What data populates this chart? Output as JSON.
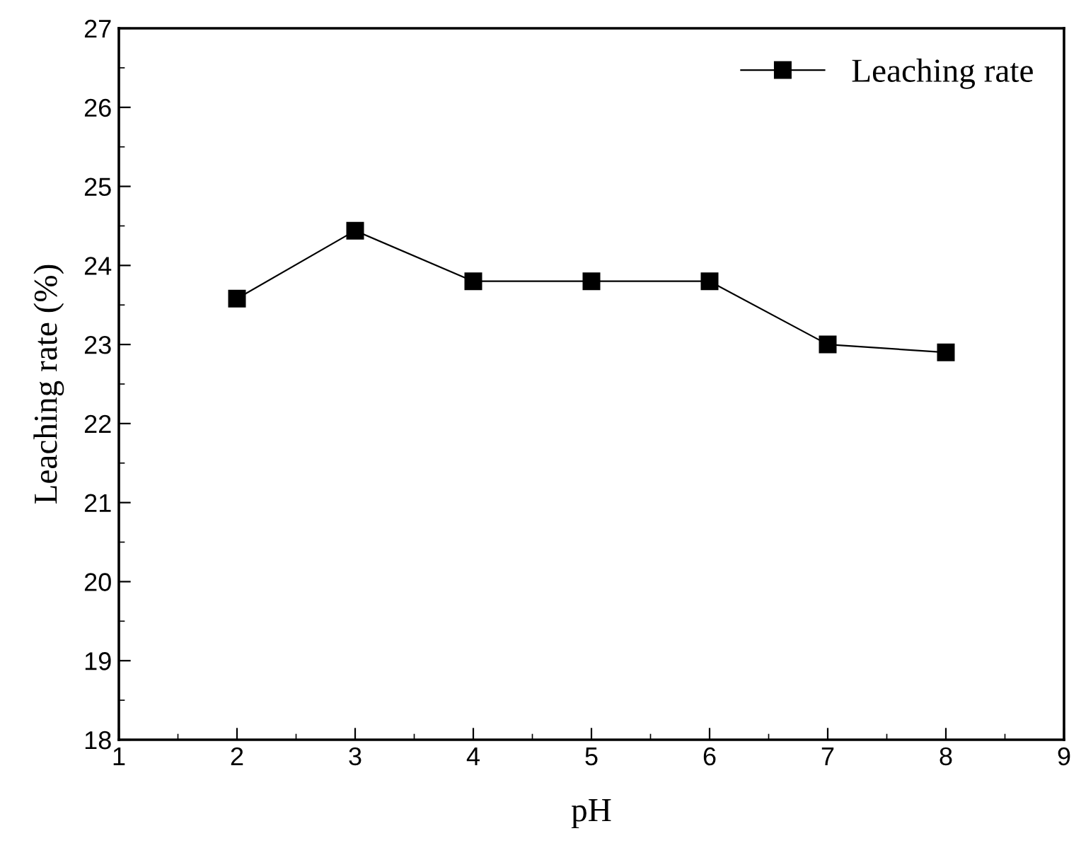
{
  "chart_data": {
    "type": "line",
    "xlabel": "pH",
    "ylabel": "Leaching rate (%)",
    "x": [
      2,
      3,
      4,
      5,
      6,
      7,
      8
    ],
    "series": [
      {
        "name": "Leaching rate",
        "color": "#000000",
        "values": [
          23.58,
          24.44,
          23.8,
          23.8,
          23.8,
          23.0,
          22.9
        ]
      }
    ],
    "xlim": [
      1,
      9
    ],
    "xticks": [
      1,
      2,
      3,
      4,
      5,
      6,
      7,
      8,
      9
    ],
    "ylim": [
      18,
      27
    ],
    "yticks": [
      18,
      19,
      20,
      21,
      22,
      23,
      24,
      25,
      26,
      27
    ],
    "marker": "square",
    "line_style": "solid",
    "legend": "top right",
    "grid": false
  }
}
